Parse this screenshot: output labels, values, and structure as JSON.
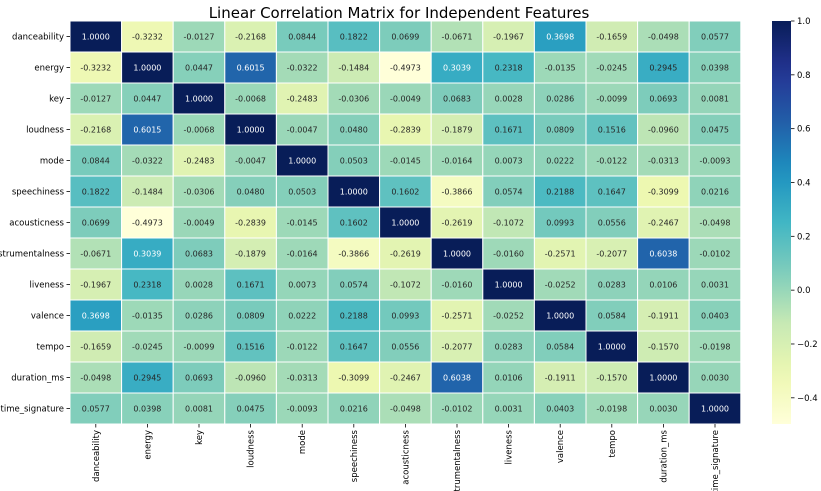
{
  "chart_data": {
    "type": "heatmap",
    "title": "Linear Correlation Matrix for Independent Features",
    "row_labels": [
      "danceability",
      "energy",
      "key",
      "loudness",
      "mode",
      "speechiness",
      "acousticness",
      "instrumentalness",
      "liveness",
      "valence",
      "tempo",
      "duration_ms",
      "time_signature"
    ],
    "col_labels": [
      "danceability",
      "energy",
      "key",
      "loudness",
      "mode",
      "speechiness",
      "acousticness",
      "instrumentalness",
      "liveness",
      "valence",
      "tempo",
      "duration_ms",
      "time_signature"
    ],
    "values": [
      [
        1.0,
        -0.3232,
        -0.0127,
        -0.2168,
        0.0844,
        0.1822,
        0.0699,
        -0.0671,
        -0.1967,
        0.3698,
        -0.1659,
        -0.0498,
        0.0577
      ],
      [
        -0.3232,
        1.0,
        0.0447,
        0.6015,
        -0.0322,
        -0.1484,
        -0.4973,
        0.3039,
        0.2318,
        -0.0135,
        -0.0245,
        0.2945,
        0.0398
      ],
      [
        -0.0127,
        0.0447,
        1.0,
        -0.0068,
        -0.2483,
        -0.0306,
        -0.0049,
        0.0683,
        0.0028,
        0.0286,
        -0.0099,
        0.0693,
        0.0081
      ],
      [
        -0.2168,
        0.6015,
        -0.0068,
        1.0,
        -0.0047,
        0.048,
        -0.2839,
        -0.1879,
        0.1671,
        0.0809,
        0.1516,
        -0.096,
        0.0475
      ],
      [
        0.0844,
        -0.0322,
        -0.2483,
        -0.0047,
        1.0,
        0.0503,
        -0.0145,
        -0.0164,
        0.0073,
        0.0222,
        -0.0122,
        -0.0313,
        -0.0093
      ],
      [
        0.1822,
        -0.1484,
        -0.0306,
        0.048,
        0.0503,
        1.0,
        0.1602,
        -0.3866,
        0.0574,
        0.2188,
        0.1647,
        -0.3099,
        0.0216
      ],
      [
        0.0699,
        -0.4973,
        -0.0049,
        -0.2839,
        -0.0145,
        0.1602,
        1.0,
        -0.2619,
        -0.1072,
        0.0993,
        0.0556,
        -0.2467,
        -0.0498
      ],
      [
        -0.0671,
        0.3039,
        0.0683,
        -0.1879,
        -0.0164,
        -0.3866,
        -0.2619,
        1.0,
        -0.016,
        -0.2571,
        -0.2077,
        0.6038,
        -0.0102
      ],
      [
        -0.1967,
        0.2318,
        0.0028,
        0.1671,
        0.0073,
        0.0574,
        -0.1072,
        -0.016,
        1.0,
        -0.0252,
        0.0283,
        0.0106,
        0.0031
      ],
      [
        0.3698,
        -0.0135,
        0.0286,
        0.0809,
        0.0222,
        0.2188,
        0.0993,
        -0.2571,
        -0.0252,
        1.0,
        0.0584,
        -0.1911,
        0.0403
      ],
      [
        -0.1659,
        -0.0245,
        -0.0099,
        0.1516,
        -0.0122,
        0.1647,
        0.0556,
        -0.2077,
        0.0283,
        0.0584,
        1.0,
        -0.157,
        -0.0198
      ],
      [
        -0.0498,
        0.2945,
        0.0693,
        -0.096,
        -0.0313,
        -0.3099,
        -0.2467,
        0.6038,
        0.0106,
        -0.1911,
        -0.157,
        1.0,
        0.003
      ],
      [
        0.0577,
        0.0398,
        0.0081,
        0.0475,
        -0.0093,
        0.0216,
        -0.0498,
        -0.0102,
        0.0031,
        0.0403,
        -0.0198,
        0.003,
        1.0
      ]
    ],
    "value_format": "4 decimals",
    "colormap": "YlGnBu",
    "colorbar": {
      "range": [
        -0.4973,
        1.0
      ],
      "ticks": [
        1.0,
        0.8,
        0.6,
        0.4,
        0.2,
        0.0,
        -0.2,
        -0.4
      ],
      "tick_labels": [
        "1.0",
        "0.8",
        "0.6",
        "0.4",
        "0.2",
        "0.0",
        "−0.2",
        "−0.4"
      ]
    },
    "grid": "white cell borders",
    "xlabel": "",
    "ylabel": ""
  }
}
